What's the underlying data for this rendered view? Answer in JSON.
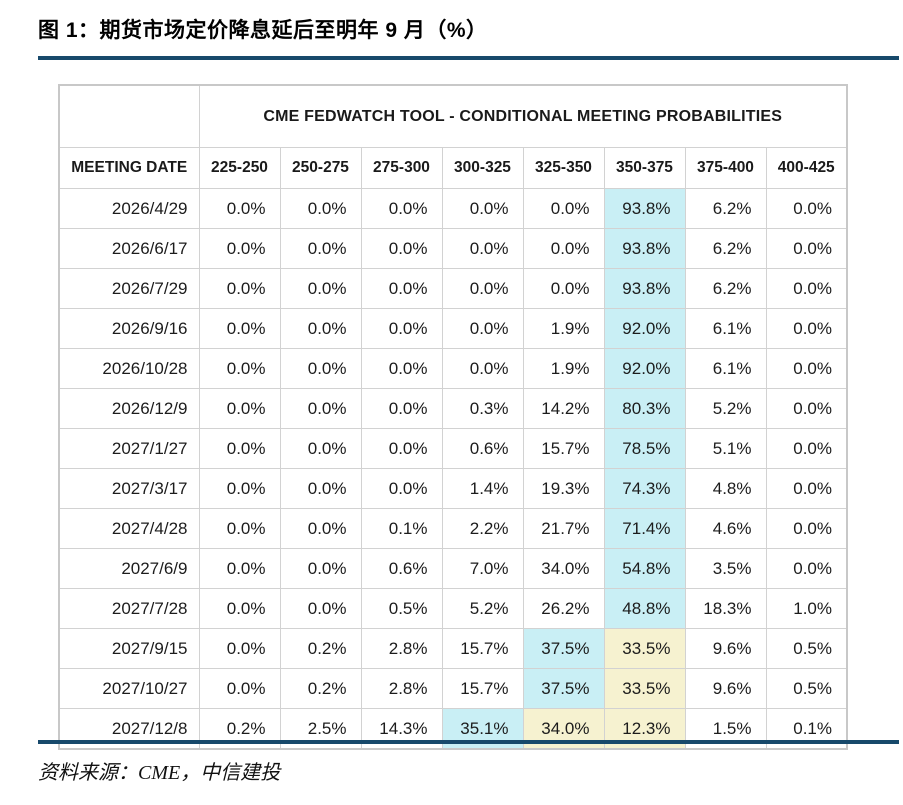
{
  "figure": {
    "title": "图 1：期货市场定价降息延后至明年 9 月（%）",
    "source": "资料来源：CME，中信建投"
  },
  "colors": {
    "accent_rule": "#17496b",
    "highlight_cyan": "#c9eff5",
    "highlight_yellow": "#f6f2d0",
    "table_border": "#d2d2d2"
  },
  "chart_data": {
    "type": "table",
    "title": "CME FEDWATCH TOOL - CONDITIONAL MEETING PROBABILITIES",
    "row_header": "MEETING DATE",
    "columns": [
      "225-250",
      "250-275",
      "275-300",
      "300-325",
      "325-350",
      "350-375",
      "375-400",
      "400-425"
    ],
    "value_unit": "%",
    "rows": [
      {
        "date": "2026/4/29",
        "values": [
          0.0,
          0.0,
          0.0,
          0.0,
          0.0,
          93.8,
          6.2,
          0.0
        ],
        "highlights": [
          null,
          null,
          null,
          null,
          null,
          "cyan",
          null,
          null
        ]
      },
      {
        "date": "2026/6/17",
        "values": [
          0.0,
          0.0,
          0.0,
          0.0,
          0.0,
          93.8,
          6.2,
          0.0
        ],
        "highlights": [
          null,
          null,
          null,
          null,
          null,
          "cyan",
          null,
          null
        ]
      },
      {
        "date": "2026/7/29",
        "values": [
          0.0,
          0.0,
          0.0,
          0.0,
          0.0,
          93.8,
          6.2,
          0.0
        ],
        "highlights": [
          null,
          null,
          null,
          null,
          null,
          "cyan",
          null,
          null
        ]
      },
      {
        "date": "2026/9/16",
        "values": [
          0.0,
          0.0,
          0.0,
          0.0,
          1.9,
          92.0,
          6.1,
          0.0
        ],
        "highlights": [
          null,
          null,
          null,
          null,
          null,
          "cyan",
          null,
          null
        ]
      },
      {
        "date": "2026/10/28",
        "values": [
          0.0,
          0.0,
          0.0,
          0.0,
          1.9,
          92.0,
          6.1,
          0.0
        ],
        "highlights": [
          null,
          null,
          null,
          null,
          null,
          "cyan",
          null,
          null
        ]
      },
      {
        "date": "2026/12/9",
        "values": [
          0.0,
          0.0,
          0.0,
          0.3,
          14.2,
          80.3,
          5.2,
          0.0
        ],
        "highlights": [
          null,
          null,
          null,
          null,
          null,
          "cyan",
          null,
          null
        ]
      },
      {
        "date": "2027/1/27",
        "values": [
          0.0,
          0.0,
          0.0,
          0.6,
          15.7,
          78.5,
          5.1,
          0.0
        ],
        "highlights": [
          null,
          null,
          null,
          null,
          null,
          "cyan",
          null,
          null
        ]
      },
      {
        "date": "2027/3/17",
        "values": [
          0.0,
          0.0,
          0.0,
          1.4,
          19.3,
          74.3,
          4.8,
          0.0
        ],
        "highlights": [
          null,
          null,
          null,
          null,
          null,
          "cyan",
          null,
          null
        ]
      },
      {
        "date": "2027/4/28",
        "values": [
          0.0,
          0.0,
          0.1,
          2.2,
          21.7,
          71.4,
          4.6,
          0.0
        ],
        "highlights": [
          null,
          null,
          null,
          null,
          null,
          "cyan",
          null,
          null
        ]
      },
      {
        "date": "2027/6/9",
        "values": [
          0.0,
          0.0,
          0.6,
          7.0,
          34.0,
          54.8,
          3.5,
          0.0
        ],
        "highlights": [
          null,
          null,
          null,
          null,
          null,
          "cyan",
          null,
          null
        ]
      },
      {
        "date": "2027/7/28",
        "values": [
          0.0,
          0.0,
          0.5,
          5.2,
          26.2,
          48.8,
          18.3,
          1.0
        ],
        "highlights": [
          null,
          null,
          null,
          null,
          null,
          "cyan",
          null,
          null
        ]
      },
      {
        "date": "2027/9/15",
        "values": [
          0.0,
          0.2,
          2.8,
          15.7,
          37.5,
          33.5,
          9.6,
          0.5
        ],
        "highlights": [
          null,
          null,
          null,
          null,
          "cyan",
          "yellow",
          null,
          null
        ]
      },
      {
        "date": "2027/10/27",
        "values": [
          0.0,
          0.2,
          2.8,
          15.7,
          37.5,
          33.5,
          9.6,
          0.5
        ],
        "highlights": [
          null,
          null,
          null,
          null,
          "cyan",
          "yellow",
          null,
          null
        ]
      },
      {
        "date": "2027/12/8",
        "values": [
          0.2,
          2.5,
          14.3,
          35.1,
          34.0,
          12.3,
          1.5,
          0.1
        ],
        "highlights": [
          null,
          null,
          null,
          "cyan",
          "yellow",
          "yellow",
          null,
          null
        ]
      }
    ]
  }
}
